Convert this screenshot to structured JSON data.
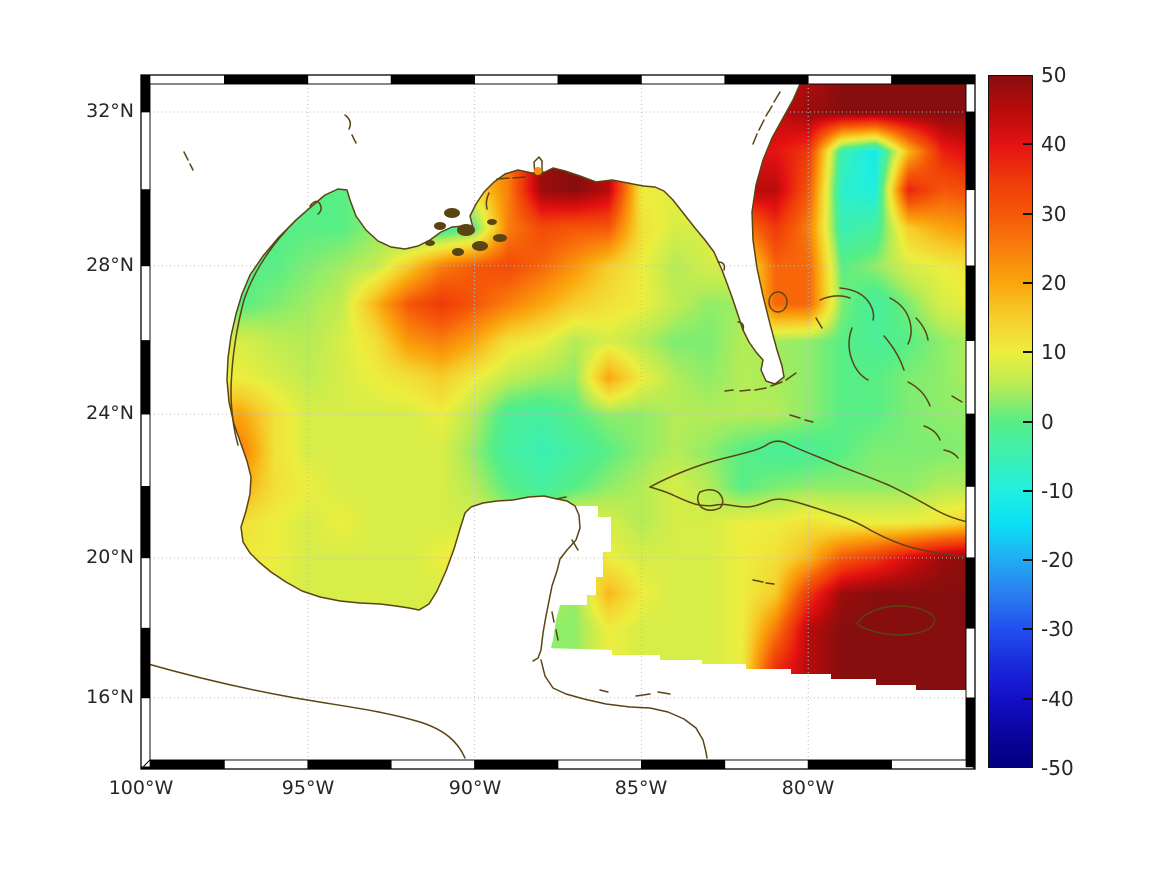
{
  "figure": {
    "background": "#ffffff",
    "kind": "geographic heatmap of Gulf of Mexico region with colorbar"
  },
  "axes": {
    "lat_ticks": [
      {
        "label": "32°N",
        "lat": 32
      },
      {
        "label": "28°N",
        "lat": 28
      },
      {
        "label": "24°N",
        "lat": 24
      },
      {
        "label": "20°N",
        "lat": 20
      },
      {
        "label": "16°N",
        "lat": 16
      }
    ],
    "lon_ticks": [
      {
        "label": "100°W",
        "lon": -100
      },
      {
        "label": "95°W",
        "lon": -95
      },
      {
        "label": "90°W",
        "lon": -90
      },
      {
        "label": "85°W",
        "lon": -85
      },
      {
        "label": "80°W",
        "lon": -80
      }
    ],
    "grid_lats": [
      32,
      28,
      24,
      20,
      16
    ],
    "grid_lons": [
      -95,
      -90,
      -85,
      -80
    ],
    "lon_range": [
      -100,
      -75
    ],
    "lat_range": [
      14,
      33
    ],
    "grid_color": "#bcbcbc",
    "coast_color": "#5A4414",
    "frame_colors": [
      "#000000",
      "#ffffff"
    ]
  },
  "colorbar": {
    "min": -50,
    "max": 50,
    "tick_labels": [
      "50",
      "40",
      "30",
      "20",
      "10",
      "0",
      "-10",
      "-20",
      "-30",
      "-40",
      "-50"
    ],
    "tick_values": [
      50,
      40,
      30,
      20,
      10,
      0,
      -10,
      -20,
      -30,
      -40,
      -50
    ]
  },
  "colormap": {
    "stops": [
      [
        -50,
        "#03007F"
      ],
      [
        -45,
        "#0A04A0"
      ],
      [
        -40,
        "#140FC9"
      ],
      [
        -35,
        "#1A2BDD"
      ],
      [
        -30,
        "#2150EE"
      ],
      [
        -25,
        "#2A7DF0"
      ],
      [
        -20,
        "#21ACF2"
      ],
      [
        -15,
        "#0ADFF5"
      ],
      [
        -10,
        "#20EFE0"
      ],
      [
        -5,
        "#3CF0B2"
      ],
      [
        0,
        "#57EE86"
      ],
      [
        5,
        "#B5EC57"
      ],
      [
        10,
        "#EDEE3E"
      ],
      [
        15,
        "#F6CE2C"
      ],
      [
        20,
        "#FAA60C"
      ],
      [
        25,
        "#F97F0C"
      ],
      [
        30,
        "#F55708"
      ],
      [
        35,
        "#EF3A0A"
      ],
      [
        40,
        "#E51212"
      ],
      [
        45,
        "#B90B0B"
      ],
      [
        50,
        "#870E0E"
      ]
    ]
  },
  "chart_data": {
    "type": "heatmap",
    "title": "",
    "xlabel": "",
    "ylabel": "",
    "x_lon": [
      -100,
      -99,
      -98,
      -97,
      -96,
      -95,
      -94,
      -93,
      -92,
      -91,
      -90,
      -89,
      -88,
      -87,
      -86,
      -85,
      -84,
      -83,
      -82,
      -81,
      -80,
      -79,
      -78,
      -77,
      -76,
      -75
    ],
    "y_lat": [
      33,
      32,
      31,
      30,
      29,
      28,
      27,
      26,
      25,
      24,
      23,
      22,
      21,
      20,
      19,
      18,
      17,
      16,
      15
    ],
    "value_range": [
      -50,
      50
    ],
    "values": [
      [
        null,
        null,
        null,
        null,
        null,
        null,
        null,
        null,
        null,
        null,
        null,
        null,
        null,
        null,
        null,
        null,
        null,
        null,
        null,
        null,
        45,
        50,
        50,
        50,
        50,
        50
      ],
      [
        null,
        null,
        null,
        null,
        null,
        null,
        null,
        null,
        null,
        null,
        null,
        null,
        null,
        null,
        null,
        null,
        null,
        null,
        null,
        null,
        48,
        50,
        50,
        50,
        50,
        50
      ],
      [
        null,
        null,
        null,
        null,
        null,
        null,
        null,
        null,
        null,
        null,
        null,
        null,
        null,
        null,
        null,
        null,
        null,
        null,
        null,
        40,
        35,
        -5,
        -12,
        18,
        38,
        42
      ],
      [
        null,
        null,
        null,
        null,
        null,
        null,
        null,
        null,
        null,
        null,
        null,
        25,
        48,
        50,
        45,
        10,
        null,
        null,
        null,
        45,
        30,
        -8,
        -10,
        38,
        30,
        32
      ],
      [
        null,
        null,
        null,
        null,
        null,
        0,
        0,
        3,
        -2,
        -4,
        0,
        25,
        32,
        30,
        30,
        12,
        8,
        null,
        null,
        null,
        25,
        -5,
        -3,
        15,
        20,
        22
      ],
      [
        null,
        null,
        null,
        0,
        0,
        2,
        4,
        6,
        15,
        25,
        30,
        32,
        28,
        22,
        15,
        10,
        5,
        8,
        null,
        null,
        28,
        0,
        3,
        8,
        10,
        12
      ],
      [
        null,
        null,
        null,
        0,
        2,
        4,
        6,
        18,
        30,
        35,
        30,
        25,
        20,
        15,
        12,
        10,
        6,
        3,
        null,
        null,
        28,
        2,
        -3,
        2,
        8,
        10
      ],
      [
        null,
        null,
        null,
        8,
        6,
        5,
        8,
        12,
        22,
        25,
        20,
        12,
        10,
        5,
        8,
        5,
        2,
        2,
        5,
        null,
        3,
        0,
        -2,
        0,
        3,
        5
      ],
      [
        null,
        null,
        null,
        10,
        8,
        6,
        8,
        10,
        12,
        15,
        10,
        6,
        4,
        3,
        20,
        10,
        5,
        3,
        5,
        null,
        3,
        0,
        0,
        2,
        3,
        5
      ],
      [
        null,
        null,
        null,
        20,
        12,
        8,
        8,
        8,
        8,
        10,
        5,
        -2,
        -3,
        0,
        3,
        3,
        5,
        5,
        5,
        5,
        3,
        0,
        0,
        2,
        3,
        3
      ],
      [
        null,
        null,
        null,
        25,
        12,
        8,
        8,
        8,
        8,
        8,
        3,
        -3,
        -5,
        -3,
        0,
        3,
        5,
        3,
        0,
        -2,
        -2,
        0,
        2,
        2,
        2,
        3
      ],
      [
        null,
        null,
        null,
        20,
        12,
        10,
        8,
        8,
        8,
        8,
        5,
        0,
        -3,
        0,
        3,
        5,
        8,
        5,
        0,
        2,
        3,
        3,
        3,
        3,
        5,
        5
      ],
      [
        null,
        null,
        null,
        12,
        10,
        8,
        10,
        8,
        8,
        8,
        8,
        5,
        3,
        10,
        8,
        5,
        8,
        8,
        10,
        10,
        12,
        10,
        10,
        10,
        12,
        15
      ],
      [
        null,
        null,
        null,
        null,
        10,
        8,
        8,
        8,
        8,
        10,
        12,
        10,
        8,
        22,
        10,
        8,
        8,
        8,
        10,
        12,
        18,
        30,
        35,
        42,
        48,
        50
      ],
      [
        null,
        null,
        null,
        null,
        null,
        8,
        8,
        8,
        8,
        8,
        8,
        8,
        null,
        3,
        18,
        10,
        8,
        8,
        10,
        15,
        35,
        48,
        50,
        50,
        50,
        50
      ],
      [
        null,
        null,
        null,
        null,
        null,
        null,
        null,
        null,
        null,
        null,
        null,
        null,
        null,
        3,
        10,
        8,
        8,
        8,
        10,
        25,
        45,
        50,
        50,
        50,
        50,
        50
      ],
      [
        null,
        null,
        null,
        null,
        null,
        null,
        null,
        null,
        null,
        null,
        null,
        null,
        null,
        null,
        null,
        null,
        null,
        null,
        null,
        null,
        45,
        50,
        50,
        50,
        50,
        50
      ],
      [
        null,
        null,
        null,
        null,
        null,
        null,
        null,
        null,
        null,
        null,
        null,
        null,
        null,
        null,
        null,
        null,
        null,
        null,
        null,
        null,
        null,
        null,
        null,
        null,
        null,
        null
      ],
      [
        null,
        null,
        null,
        null,
        null,
        null,
        null,
        null,
        null,
        null,
        null,
        null,
        null,
        null,
        null,
        null,
        null,
        null,
        null,
        null,
        null,
        null,
        null,
        null,
        null,
        null
      ]
    ],
    "legend": "colorbar right, ticks every 10 from -50 to 50, jet-style colormap",
    "annotations": [
      "white areas = land / no data",
      "brown lines = coastlines"
    ]
  }
}
